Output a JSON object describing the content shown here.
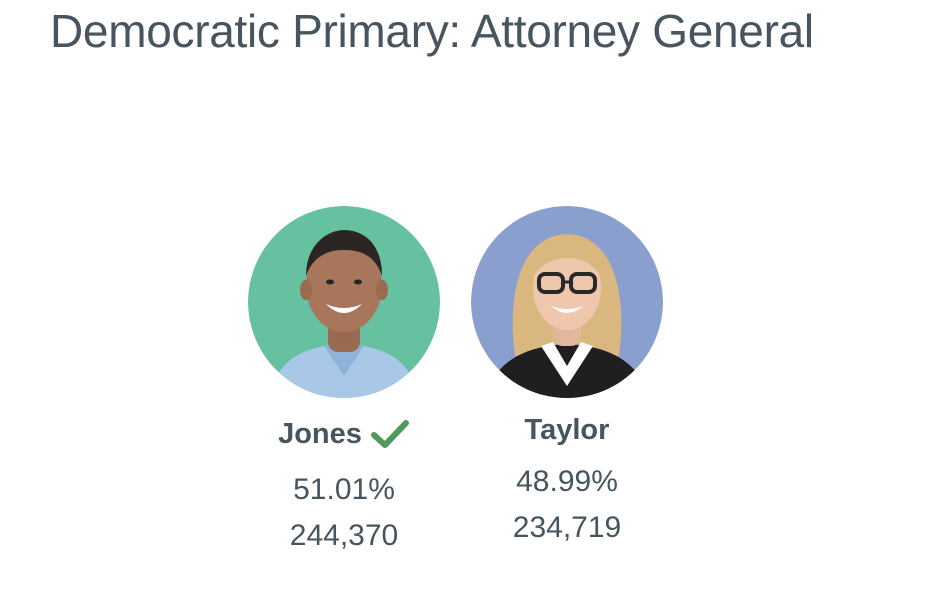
{
  "race": {
    "title": "Democratic Primary: Attorney General"
  },
  "candidates": [
    {
      "name": "Jones",
      "percent": "51.01%",
      "votes": "244,370",
      "winner": true,
      "photo_bg_color": "#66c1a1"
    },
    {
      "name": "Taylor",
      "percent": "48.99%",
      "votes": "234,719",
      "winner": false,
      "photo_bg_color": "#8b9fce"
    }
  ],
  "colors": {
    "text": "#47555e",
    "winner_check": "#4f9a5b"
  },
  "icons": {
    "winner": "checkmark-icon"
  }
}
